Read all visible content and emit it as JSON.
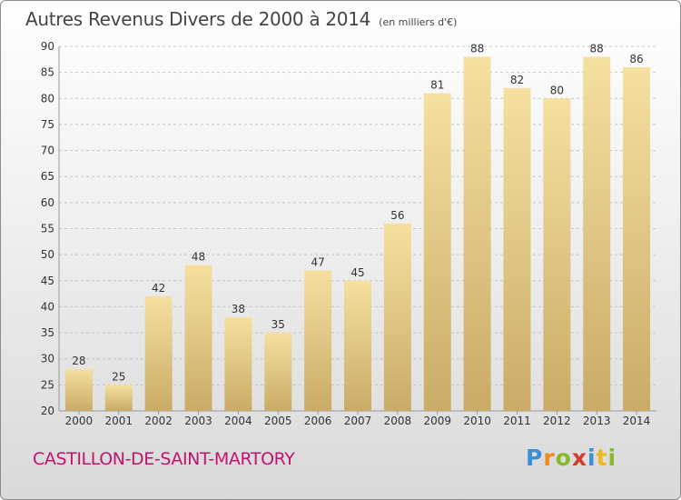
{
  "header": {
    "title": "Autres Revenus Divers de 2000 à 2014",
    "subtitle": "(en milliers d'€)"
  },
  "footer": {
    "commune": "CASTILLON-DE-SAINT-MARTORY",
    "logo_letters": [
      "P",
      "r",
      "o",
      "x",
      "i",
      "t",
      "i"
    ],
    "logo_colors": [
      "#3a8fd8",
      "#f08a1c",
      "#8ab82a",
      "#d83a2a",
      "#3a8fd8",
      "#f0b81c",
      "#8ab82a"
    ]
  },
  "colors": {
    "bar_light": "#f5e0a0",
    "bar_dark": "#c9ab66",
    "grid": "#c8c8c8",
    "axis_text": "#333333",
    "commune_text": "#c0146e"
  },
  "chart_data": {
    "type": "bar",
    "categories": [
      "2000",
      "2001",
      "2002",
      "2003",
      "2004",
      "2005",
      "2006",
      "2007",
      "2008",
      "2009",
      "2010",
      "2011",
      "2012",
      "2013",
      "2014"
    ],
    "values": [
      28,
      25,
      42,
      48,
      38,
      35,
      47,
      45,
      56,
      81,
      88,
      82,
      80,
      88,
      86
    ],
    "ylim": [
      20,
      90
    ],
    "yticks": [
      20,
      25,
      30,
      35,
      40,
      45,
      50,
      55,
      60,
      65,
      70,
      75,
      80,
      85,
      90
    ],
    "grid": true,
    "data_labels": true
  }
}
